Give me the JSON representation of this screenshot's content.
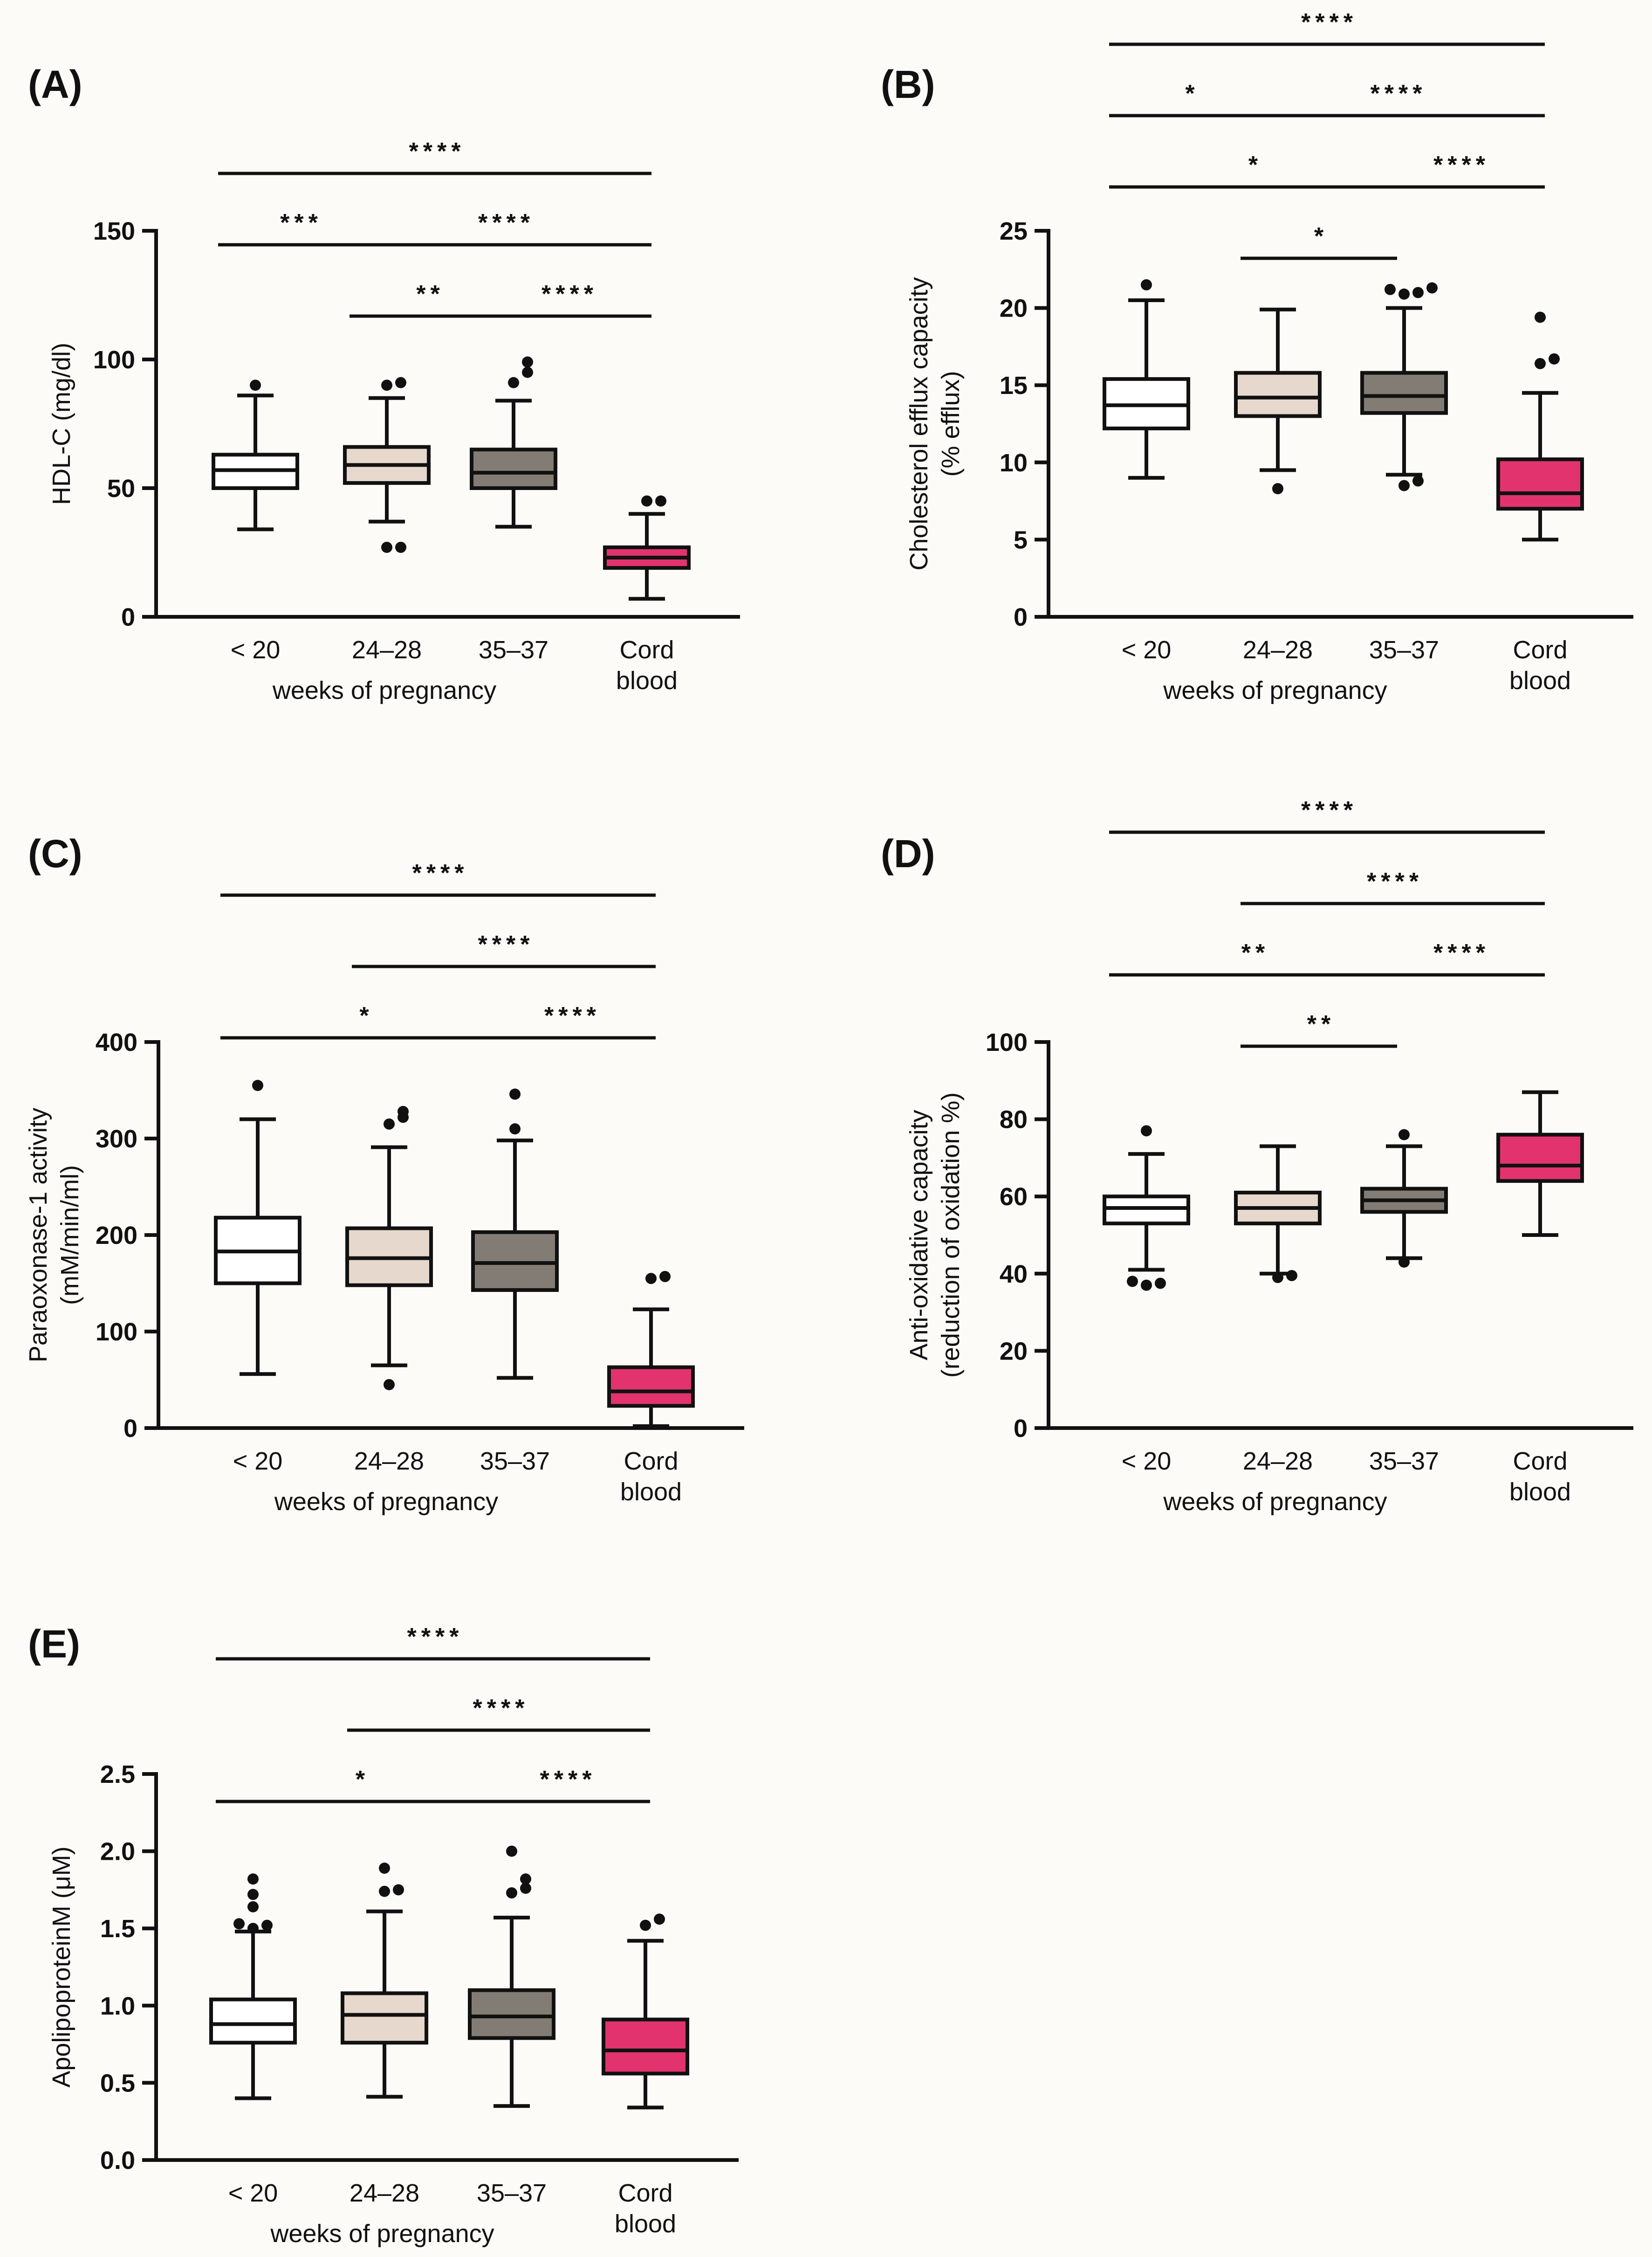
{
  "figure": {
    "xlabel": "weeks of pregnancy",
    "category_labels": [
      {
        "lines": [
          "< 20"
        ]
      },
      {
        "lines": [
          "24–28"
        ]
      },
      {
        "lines": [
          "35–37"
        ]
      },
      {
        "lines": [
          "Cord",
          "blood"
        ]
      }
    ],
    "colors": {
      "lt20": "#ffffff",
      "w2428": "#e6d8cc",
      "w3537": "#827c74",
      "cord": "#e2336f",
      "line": "#111111",
      "background": "#fcfbf8"
    }
  },
  "chart_data": [
    {
      "panel": "(A)",
      "type": "box",
      "ylabel_lines": [
        "HDL-C (mg/dl)"
      ],
      "ylim": [
        0,
        150
      ],
      "yticks": [
        0,
        50,
        100,
        150
      ],
      "ytick_labels": [
        "0",
        "50",
        "100",
        "150"
      ],
      "categories": [
        "< 20",
        "24–28",
        "35–37",
        "Cord blood"
      ],
      "boxes": [
        {
          "q1": 50,
          "median": 57,
          "q3": 63,
          "whisker_low": 34,
          "whisker_high": 86,
          "outliers": [
            90
          ]
        },
        {
          "q1": 52,
          "median": 59,
          "q3": 66,
          "whisker_low": 37,
          "whisker_high": 85,
          "outliers": [
            27,
            27,
            90,
            91
          ]
        },
        {
          "q1": 50,
          "median": 56,
          "q3": 65,
          "whisker_low": 35,
          "whisker_high": 84,
          "outliers": [
            91,
            95,
            99
          ]
        },
        {
          "q1": 19,
          "median": 23,
          "q3": 27,
          "whisker_low": 7,
          "whisker_high": 40,
          "outliers": [
            45,
            45
          ]
        }
      ],
      "significance": [
        {
          "from": 0,
          "to": 3,
          "label": "****"
        },
        {
          "from": 0,
          "to": 1,
          "label": "***"
        },
        {
          "from": 1,
          "to": 3,
          "label": "****"
        },
        {
          "from": 1,
          "to": 2,
          "label": "**"
        },
        {
          "from": 2,
          "to": 3,
          "label": "****"
        }
      ]
    },
    {
      "panel": "(B)",
      "type": "box",
      "ylabel_lines": [
        "Cholesterol efflux capacity",
        "(% efflux)"
      ],
      "ylim": [
        0,
        25
      ],
      "yticks": [
        0,
        5,
        10,
        15,
        20,
        25
      ],
      "ytick_labels": [
        "0",
        "5",
        "10",
        "15",
        "20",
        "25"
      ],
      "categories": [
        "< 20",
        "24–28",
        "35–37",
        "Cord blood"
      ],
      "boxes": [
        {
          "q1": 12.2,
          "median": 13.7,
          "q3": 15.4,
          "whisker_low": 9.0,
          "whisker_high": 20.5,
          "outliers": [
            21.5
          ]
        },
        {
          "q1": 13.0,
          "median": 14.2,
          "q3": 15.8,
          "whisker_low": 9.5,
          "whisker_high": 19.9,
          "outliers": [
            8.3
          ]
        },
        {
          "q1": 13.2,
          "median": 14.3,
          "q3": 15.8,
          "whisker_low": 9.2,
          "whisker_high": 20.0,
          "outliers": [
            8.5,
            8.8,
            20.9,
            21.0,
            21.2,
            21.3
          ]
        },
        {
          "q1": 7.0,
          "median": 8.0,
          "q3": 10.2,
          "whisker_low": 5.0,
          "whisker_high": 14.5,
          "outliers": [
            16.4,
            16.7,
            19.4
          ]
        }
      ],
      "significance": [
        {
          "from": 0,
          "to": 3,
          "label": "****"
        },
        {
          "from": 1,
          "to": 3,
          "label": "****"
        },
        {
          "from": 0,
          "to": 2,
          "label": "*"
        },
        {
          "from": 2,
          "to": 3,
          "label": "****"
        },
        {
          "from": 0,
          "to": 1,
          "label": "*"
        },
        {
          "from": 1,
          "to": 2,
          "label": "*"
        }
      ]
    },
    {
      "panel": "(C)",
      "type": "box",
      "ylabel_lines": [
        "Paraoxonase-1 activity",
        "(mM/min/ml)"
      ],
      "ylim": [
        0,
        400
      ],
      "yticks": [
        0,
        100,
        200,
        300,
        400
      ],
      "ytick_labels": [
        "0",
        "100",
        "200",
        "300",
        "400"
      ],
      "categories": [
        "< 20",
        "24–28",
        "35–37",
        "Cord blood"
      ],
      "boxes": [
        {
          "q1": 150,
          "median": 183,
          "q3": 218,
          "whisker_low": 56,
          "whisker_high": 320,
          "outliers": [
            355
          ]
        },
        {
          "q1": 148,
          "median": 176,
          "q3": 207,
          "whisker_low": 65,
          "whisker_high": 291,
          "outliers": [
            45,
            315,
            322,
            328
          ]
        },
        {
          "q1": 143,
          "median": 171,
          "q3": 203,
          "whisker_low": 52,
          "whisker_high": 298,
          "outliers": [
            310,
            346
          ]
        },
        {
          "q1": 23,
          "median": 38,
          "q3": 63,
          "whisker_low": 2,
          "whisker_high": 123,
          "outliers": [
            155,
            157
          ]
        }
      ],
      "significance": [
        {
          "from": 0,
          "to": 3,
          "label": "****"
        },
        {
          "from": 1,
          "to": 3,
          "label": "****"
        },
        {
          "from": 0,
          "to": 2,
          "label": "*"
        },
        {
          "from": 2,
          "to": 3,
          "label": "****"
        }
      ]
    },
    {
      "panel": "(D)",
      "type": "box",
      "ylabel_lines": [
        "Anti-oxidative capacity",
        "(reduction of oxidation %)"
      ],
      "ylim": [
        0,
        100
      ],
      "yticks": [
        0,
        20,
        40,
        60,
        80,
        100
      ],
      "ytick_labels": [
        "0",
        "20",
        "40",
        "60",
        "80",
        "100"
      ],
      "categories": [
        "< 20",
        "24–28",
        "35–37",
        "Cord blood"
      ],
      "boxes": [
        {
          "q1": 53,
          "median": 57,
          "q3": 60,
          "whisker_low": 41,
          "whisker_high": 71,
          "outliers": [
            37,
            37.5,
            38,
            77
          ]
        },
        {
          "q1": 53,
          "median": 57,
          "q3": 61,
          "whisker_low": 40,
          "whisker_high": 73,
          "outliers": [
            39,
            39.5
          ]
        },
        {
          "q1": 56,
          "median": 59,
          "q3": 62,
          "whisker_low": 44,
          "whisker_high": 73,
          "outliers": [
            43,
            76
          ]
        },
        {
          "q1": 64,
          "median": 68,
          "q3": 76,
          "whisker_low": 50,
          "whisker_high": 87,
          "outliers": []
        }
      ],
      "significance": [
        {
          "from": 0,
          "to": 3,
          "label": "****"
        },
        {
          "from": 1,
          "to": 3,
          "label": "****"
        },
        {
          "from": 0,
          "to": 2,
          "label": "**"
        },
        {
          "from": 1,
          "to": 2,
          "label": "**"
        },
        {
          "from": 2,
          "to": 3,
          "label": "****"
        }
      ]
    },
    {
      "panel": "(E)",
      "type": "box",
      "ylabel_lines": [
        "ApolipoproteinM (μM)"
      ],
      "ylim": [
        0,
        2.5
      ],
      "yticks": [
        0,
        0.5,
        1.0,
        1.5,
        2.0,
        2.5
      ],
      "ytick_labels": [
        "0.0",
        "0.5",
        "1.0",
        "1.5",
        "2.0",
        "2.5"
      ],
      "categories": [
        "< 20",
        "24–28",
        "35–37",
        "Cord blood"
      ],
      "boxes": [
        {
          "q1": 0.76,
          "median": 0.88,
          "q3": 1.04,
          "whisker_low": 0.4,
          "whisker_high": 1.48,
          "outliers": [
            1.5,
            1.52,
            1.53,
            1.64,
            1.72,
            1.82
          ]
        },
        {
          "q1": 0.76,
          "median": 0.94,
          "q3": 1.08,
          "whisker_low": 0.41,
          "whisker_high": 1.61,
          "outliers": [
            1.74,
            1.75,
            1.89
          ]
        },
        {
          "q1": 0.79,
          "median": 0.93,
          "q3": 1.1,
          "whisker_low": 0.35,
          "whisker_high": 1.57,
          "outliers": [
            1.73,
            1.76,
            1.82,
            2.0
          ]
        },
        {
          "q1": 0.56,
          "median": 0.71,
          "q3": 0.91,
          "whisker_low": 0.34,
          "whisker_high": 1.42,
          "outliers": [
            1.52,
            1.56
          ]
        }
      ],
      "significance": [
        {
          "from": 0,
          "to": 3,
          "label": "****"
        },
        {
          "from": 1,
          "to": 3,
          "label": "****"
        },
        {
          "from": 0,
          "to": 2,
          "label": "*"
        },
        {
          "from": 2,
          "to": 3,
          "label": "****"
        }
      ]
    }
  ]
}
